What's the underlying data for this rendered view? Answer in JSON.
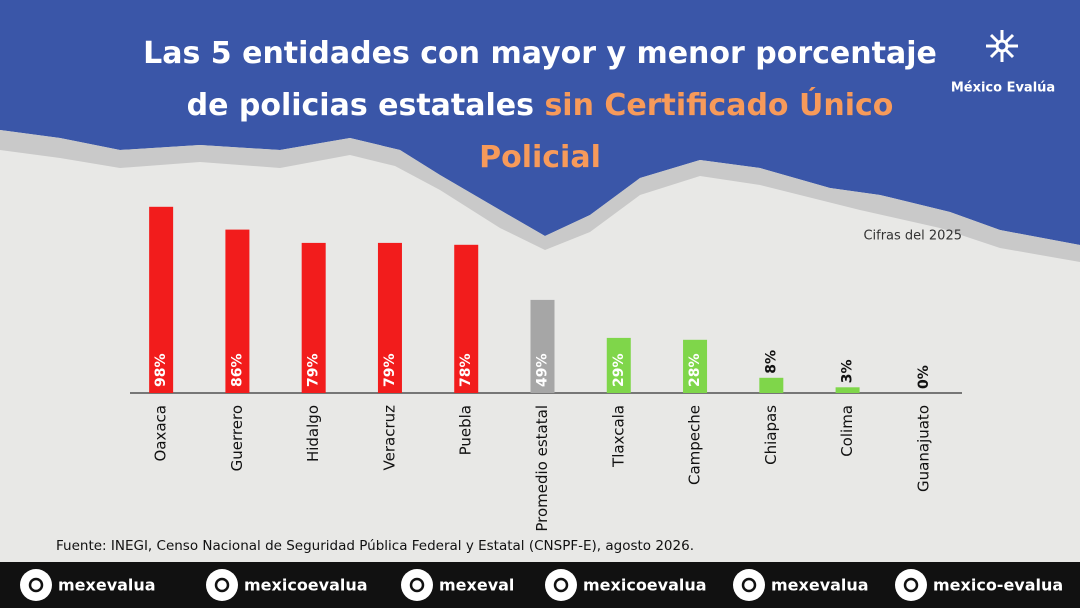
{
  "chart_data": {
    "type": "bar",
    "title": "Las 5 entidades con mayor y menor porcentaje de policias estatales",
    "title_highlight": "sin Certificado Único Policial",
    "brand": "México Evalúa",
    "subtitle": "Cifras del 2025",
    "source": "Fuente: INEGI, Censo Nacional de Seguridad Pública Federal y Estatal (CNSPF-E), agosto 2026.",
    "categories": [
      "Oaxaca",
      "Guerrero",
      "Hidalgo",
      "Veracruz",
      "Puebla",
      "Promedio estatal",
      "Tlaxcala",
      "Campeche",
      "Chiapas",
      "Colima",
      "Guanajuato"
    ],
    "values": [
      98,
      86,
      79,
      79,
      78,
      49,
      29,
      28,
      8,
      3,
      0
    ],
    "value_labels": [
      "98%",
      "86%",
      "79%",
      "79%",
      "78%",
      "49%",
      "29%",
      "28%",
      "8%",
      "3%",
      "0%"
    ],
    "colors": [
      "#f21c1c",
      "#f21c1c",
      "#f21c1c",
      "#f21c1c",
      "#f21c1c",
      "#a6a6a6",
      "#7fd64a",
      "#7fd64a",
      "#7fd64a",
      "#7fd64a",
      "#7fd64a"
    ],
    "ylim": [
      0,
      100
    ],
    "social": [
      "mexevalua",
      "mexicoevalua",
      "mexeval",
      "mexicoevalua",
      "mexevalua",
      "mexico-evalua"
    ]
  }
}
